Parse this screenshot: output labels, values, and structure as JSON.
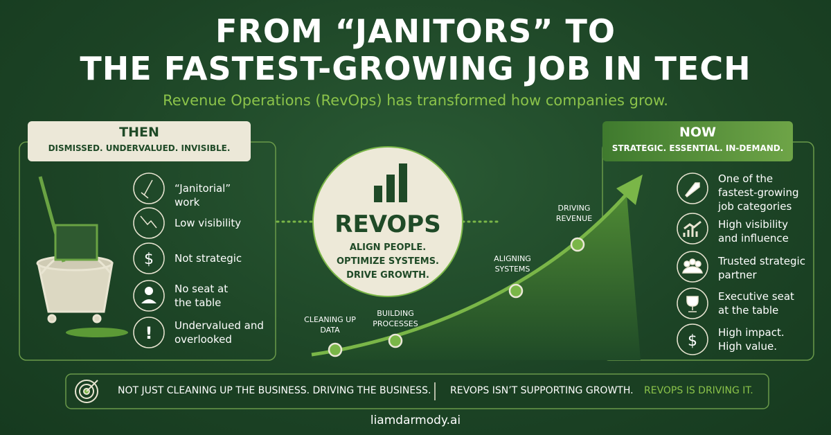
{
  "header": {
    "title_lines": [
      "FROM “JANITORS” TO",
      "THE FASTEST-GROWING JOB IN TECH"
    ],
    "subtitle": "Revenue Operations (RevOps) has transformed how companies grow."
  },
  "then": {
    "title": "THEN",
    "subtitle": "DISMISSED. UNDERVALUED. INVISIBLE.",
    "items": [
      "“Janitorial” work",
      "Low visibility",
      "Not strategic",
      "No seat at the table",
      "Undervalued and overlooked"
    ]
  },
  "center": {
    "title": "REVOPS",
    "lines": [
      "ALIGN PEOPLE.",
      "OPTIMIZE SYSTEMS.",
      "DRIVE GROWTH."
    ]
  },
  "milestones": [
    "CLEANING UP DATA",
    "BUILDING PROCESSES",
    "ALIGNING SYSTEMS",
    "DRIVING REVENUE"
  ],
  "now": {
    "title": "NOW",
    "subtitle": "STRATEGIC. ESSENTIAL. IN-DEMAND.",
    "items": [
      "One of the fastest-growing job categories",
      "High visibility and influence",
      "Trusted strategic partner",
      "Executive seat at the table",
      "High impact. High value."
    ]
  },
  "banner": {
    "left": "NOT JUST CLEANING UP THE BUSINESS. DRIVING THE BUSINESS.",
    "right": "REVOPS ISN’T SUPPORTING GROWTH.",
    "right_highlight": "REVOPS IS DRIVING IT."
  },
  "footer": "liamdarmody.ai"
}
